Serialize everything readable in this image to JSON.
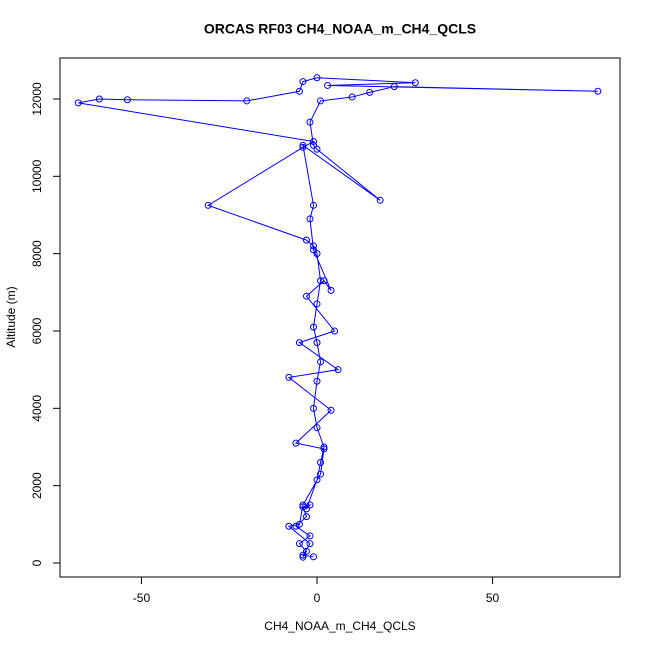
{
  "chart_data": {
    "type": "line",
    "title": "ORCAS RF03 CH4_NOAA_m_CH4_QCLS",
    "x_label": "CH4_NOAA_m_CH4_QCLS",
    "y_label": "Altitude (m)",
    "x": [
      -4,
      -3,
      -5,
      -2,
      -6,
      -3,
      -4,
      -2,
      -3,
      0,
      1,
      2,
      0,
      -1,
      0,
      1,
      0,
      -1,
      0,
      1,
      0,
      -1,
      -3,
      -31,
      -4,
      -1,
      -68,
      -62,
      -54,
      -20,
      -5,
      -4,
      0,
      28,
      3,
      80,
      22,
      15,
      10,
      1,
      -2,
      -1,
      0,
      18,
      -4,
      -1,
      -2,
      -1,
      4,
      2,
      -3,
      5,
      -5,
      6,
      -8,
      4,
      -6,
      2,
      1,
      -4,
      -5,
      -8,
      -2,
      -4,
      -1
    ],
    "series": [
      {
        "color": "#0000ff",
        "values": [
          150,
          300,
          500,
          700,
          950,
          1200,
          1450,
          1500,
          1400,
          2150,
          2600,
          3000,
          3500,
          4000,
          4700,
          5200,
          5700,
          6100,
          6700,
          7300,
          8000,
          8200,
          8350,
          9250,
          10750,
          10900,
          11900,
          12000,
          11980,
          11950,
          12200,
          12450,
          12550,
          12420,
          12350,
          12200,
          12320,
          12170,
          12050,
          11950,
          11400,
          10800,
          10700,
          9380,
          10800,
          9250,
          8900,
          8100,
          7050,
          7300,
          6900,
          6000,
          5700,
          5000,
          4800,
          3950,
          3100,
          2950,
          2300,
          1500,
          1000,
          950,
          500,
          200,
          160
        ]
      }
    ],
    "xlim": [
      -73.2,
      86.3
    ],
    "xticks": [
      -50,
      0,
      50
    ],
    "ylim": [
      -362,
      13060
    ],
    "yticks": [
      0,
      2000,
      4000,
      6000,
      8000,
      10000,
      12000
    ],
    "grid": false
  }
}
